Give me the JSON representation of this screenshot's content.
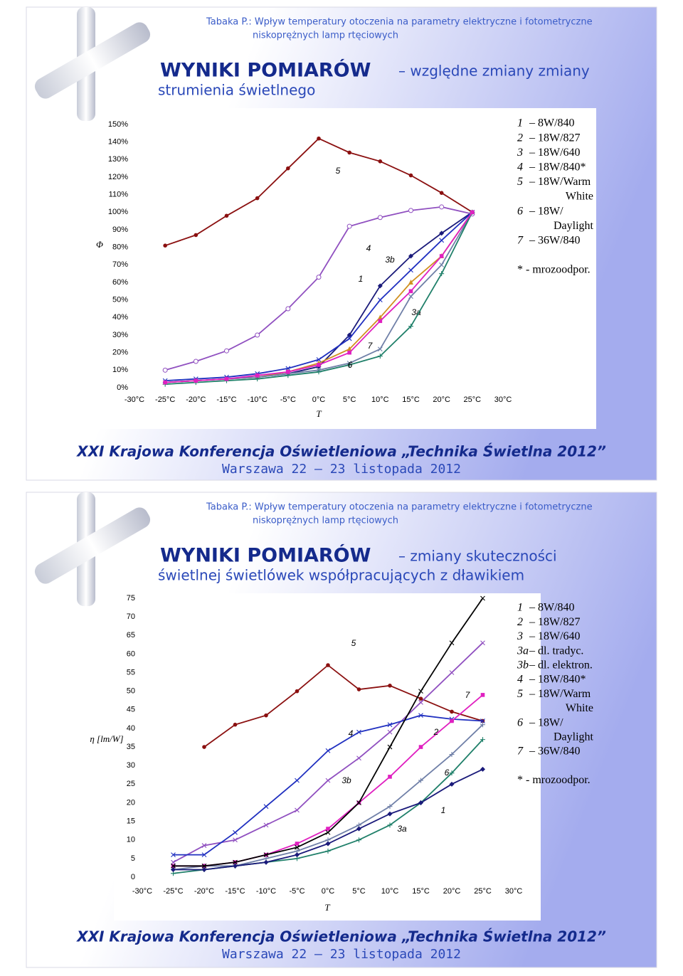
{
  "slides": [
    {
      "header": {
        "source": [
          "Tabaka P.: Wpływ temperatury otoczenia na parametry elektryczne i fotometryczne",
          "niskoprężnych lamp rtęciowych"
        ],
        "title": "WYNIKI POMIARÓW",
        "subtitle": [
          "– względne zmiany zmiany",
          "strumienia świetlnego"
        ]
      },
      "legend": [
        {
          "key": "1",
          "label": [
            "– 8W/840"
          ]
        },
        {
          "key": "2",
          "label": [
            "– 18W/827"
          ]
        },
        {
          "key": "3",
          "label": [
            "– 18W/640"
          ]
        },
        {
          "key": "4",
          "label": [
            "– 18W/840*"
          ]
        },
        {
          "key": "5",
          "label": [
            "– 18W/Warm",
            "White"
          ]
        },
        {
          "key": "6",
          "label": [
            "– 18W/",
            "Daylight"
          ]
        },
        {
          "key": "7",
          "label": [
            "– 36W/840"
          ]
        }
      ],
      "note": "* - mrozoodpor.",
      "footer": [
        "XXI Krajowa Konferencja Oświetleniowa „Technika Świetlna 2012”",
        "Warszawa 22 – 23 listopada 2012"
      ]
    },
    {
      "header": {
        "source": [
          "Tabaka P.: Wpływ temperatury otoczenia na parametry elektryczne i fotometryczne",
          "niskoprężnych lamp rtęciowych"
        ],
        "title": "WYNIKI POMIARÓW",
        "subtitle": [
          "– zmiany skuteczności",
          "świetlnej świetlówek współpracujących z dławikiem"
        ]
      },
      "legend": [
        {
          "key": "1",
          "label": [
            "– 8W/840"
          ]
        },
        {
          "key": "2",
          "label": [
            "– 18W/827"
          ]
        },
        {
          "key": "3",
          "label": [
            "– 18W/640"
          ]
        },
        {
          "key": "3a",
          "label": [
            "– dl. tradyc."
          ]
        },
        {
          "key": "3b",
          "label": [
            "– dl. elektron."
          ]
        },
        {
          "key": "4",
          "label": [
            "– 18W/840*"
          ]
        },
        {
          "key": "5",
          "label": [
            "– 18W/Warm",
            "White"
          ]
        },
        {
          "key": "6",
          "label": [
            "– 18W/",
            "Daylight"
          ]
        },
        {
          "key": "7",
          "label": [
            "– 36W/840"
          ]
        }
      ],
      "note": "* - mrozoodpor.",
      "footer": [
        "XXI Krajowa Konferencja Oświetleniowa „Technika Świetlna 2012”",
        "Warszawa 22 – 23 listopada 2012"
      ]
    }
  ],
  "chart_data": [
    {
      "type": "line",
      "y_label": "Φ",
      "x_label": "T",
      "x": [
        -25,
        -20,
        -15,
        -10,
        -5,
        0,
        5,
        10,
        15,
        20,
        25
      ],
      "xlim": [
        -30,
        30
      ],
      "xticks": [
        {
          "value": -30,
          "label": "-30°C"
        },
        {
          "value": -25,
          "label": "-25°C"
        },
        {
          "value": -20,
          "label": "-20°C"
        },
        {
          "value": -15,
          "label": "-15°C"
        },
        {
          "value": -10,
          "label": "-10°C"
        },
        {
          "value": -5,
          "label": "-5°C"
        },
        {
          "value": 0,
          "label": "0°C"
        },
        {
          "value": 5,
          "label": "5°C"
        },
        {
          "value": 10,
          "label": "10°C"
        },
        {
          "value": 15,
          "label": "15°C"
        },
        {
          "value": 20,
          "label": "20°C"
        },
        {
          "value": 25,
          "label": "25°C"
        },
        {
          "value": 30,
          "label": "30°C"
        }
      ],
      "ylim": [
        0,
        150
      ],
      "yticks": [
        {
          "value": 0,
          "label": "0%"
        },
        {
          "value": 10,
          "label": "10%"
        },
        {
          "value": 20,
          "label": "20%"
        },
        {
          "value": 30,
          "label": "30%"
        },
        {
          "value": 40,
          "label": "40%"
        },
        {
          "value": 50,
          "label": "50%"
        },
        {
          "value": 60,
          "label": "60%"
        },
        {
          "value": 70,
          "label": "70%"
        },
        {
          "value": 80,
          "label": "80%"
        },
        {
          "value": 90,
          "label": "90%"
        },
        {
          "value": 100,
          "label": "100%"
        },
        {
          "value": 110,
          "label": "110%"
        },
        {
          "value": 120,
          "label": "120%"
        },
        {
          "value": 130,
          "label": "130%"
        },
        {
          "value": 140,
          "label": "140%"
        },
        {
          "value": 150,
          "label": "150%"
        }
      ],
      "series": [
        {
          "name": "1",
          "color": "#1a1a7a",
          "marker": "diamond",
          "values": [
            3,
            4,
            5,
            6,
            8,
            12,
            30,
            58,
            75,
            88,
            100
          ]
        },
        {
          "name": "7",
          "color": "#d09020",
          "marker": "triangle",
          "values": [
            3,
            4,
            5,
            6,
            9,
            14,
            22,
            40,
            60,
            75,
            100
          ]
        },
        {
          "name": "3a",
          "color": "#7080a8",
          "marker": "x",
          "values": [
            3,
            4,
            5,
            6,
            8,
            10,
            14,
            22,
            52,
            70,
            100
          ]
        },
        {
          "name": "3b",
          "color": "#2030c0",
          "marker": "x",
          "values": [
            4,
            5,
            6,
            8,
            11,
            16,
            28,
            50,
            67,
            84,
            100
          ]
        },
        {
          "name": "4",
          "color": "#9050c0",
          "marker": "circle-open",
          "values": [
            10,
            15,
            21,
            30,
            45,
            63,
            92,
            97,
            101,
            103,
            99
          ]
        },
        {
          "name": "5",
          "color": "#8b1010",
          "marker": "circle",
          "values": [
            81,
            87,
            98,
            108,
            125,
            142,
            134,
            129,
            121,
            111,
            100
          ]
        },
        {
          "name": "6",
          "color": "#20806a",
          "marker": "plus",
          "values": [
            2,
            3,
            4,
            5,
            7,
            9,
            13,
            18,
            35,
            65,
            100
          ]
        },
        {
          "name": "2",
          "color": "#e020c0",
          "marker": "square",
          "values": [
            3,
            4,
            5,
            7,
            9,
            13,
            20,
            38,
            55,
            75,
            100
          ]
        }
      ]
    },
    {
      "type": "line",
      "y_label": "η [lm/W]",
      "x_label": "T",
      "x": [
        -25,
        -20,
        -15,
        -10,
        -5,
        0,
        5,
        10,
        15,
        20,
        25
      ],
      "xlim": [
        -30,
        30
      ],
      "xticks": [
        {
          "value": -30,
          "label": "-30°C"
        },
        {
          "value": -25,
          "label": "-25°C"
        },
        {
          "value": -20,
          "label": "-20°C"
        },
        {
          "value": -15,
          "label": "-15°C"
        },
        {
          "value": -10,
          "label": "-10°C"
        },
        {
          "value": -5,
          "label": "-5°C"
        },
        {
          "value": 0,
          "label": "0°C"
        },
        {
          "value": 5,
          "label": "5°C"
        },
        {
          "value": 10,
          "label": "10°C"
        },
        {
          "value": 15,
          "label": "15°C"
        },
        {
          "value": 20,
          "label": "20°C"
        },
        {
          "value": 25,
          "label": "25°C"
        },
        {
          "value": 30,
          "label": "30°C"
        }
      ],
      "ylim": [
        0,
        75
      ],
      "yticks": [
        0,
        5,
        10,
        15,
        20,
        25,
        30,
        35,
        40,
        45,
        50,
        55,
        60,
        65,
        70,
        75
      ],
      "series": [
        {
          "name": "5",
          "color": "#8b1010",
          "marker": "circle",
          "values": [
            null,
            35,
            41,
            43.5,
            50,
            57,
            50.5,
            51.5,
            48,
            44.5,
            42
          ]
        },
        {
          "name": "4",
          "color": "#9050c0",
          "marker": "x",
          "values": [
            4,
            8.5,
            10,
            14,
            18,
            26,
            32,
            39,
            47,
            55,
            63
          ]
        },
        {
          "name": "3b",
          "color": "#2030c0",
          "marker": "x",
          "values": [
            6,
            6,
            12,
            19,
            26,
            34,
            39,
            41,
            43.5,
            42.5,
            42
          ]
        },
        {
          "name": "3a",
          "color": "#7080a8",
          "marker": "plus",
          "values": [
            2,
            3,
            3,
            5,
            7,
            10,
            14,
            19,
            26,
            33,
            41
          ]
        },
        {
          "name": "2",
          "color": "#e020c0",
          "marker": "square",
          "values": [
            3,
            3,
            4,
            6,
            9,
            13,
            20,
            27,
            35,
            42,
            49
          ]
        },
        {
          "name": "6",
          "color": "#20806a",
          "marker": "plus",
          "values": [
            1,
            2,
            3,
            4,
            5,
            7,
            10,
            14,
            20,
            28,
            37
          ]
        },
        {
          "name": "1",
          "color": "#1a1a7a",
          "marker": "diamond",
          "values": [
            2,
            2,
            3,
            4,
            6,
            9,
            13,
            17,
            20,
            25,
            29
          ]
        },
        {
          "name": "7",
          "color": "#000000",
          "marker": "x",
          "values": [
            3,
            3,
            4,
            6,
            8,
            12,
            20,
            35,
            50,
            63,
            75
          ]
        }
      ]
    }
  ]
}
